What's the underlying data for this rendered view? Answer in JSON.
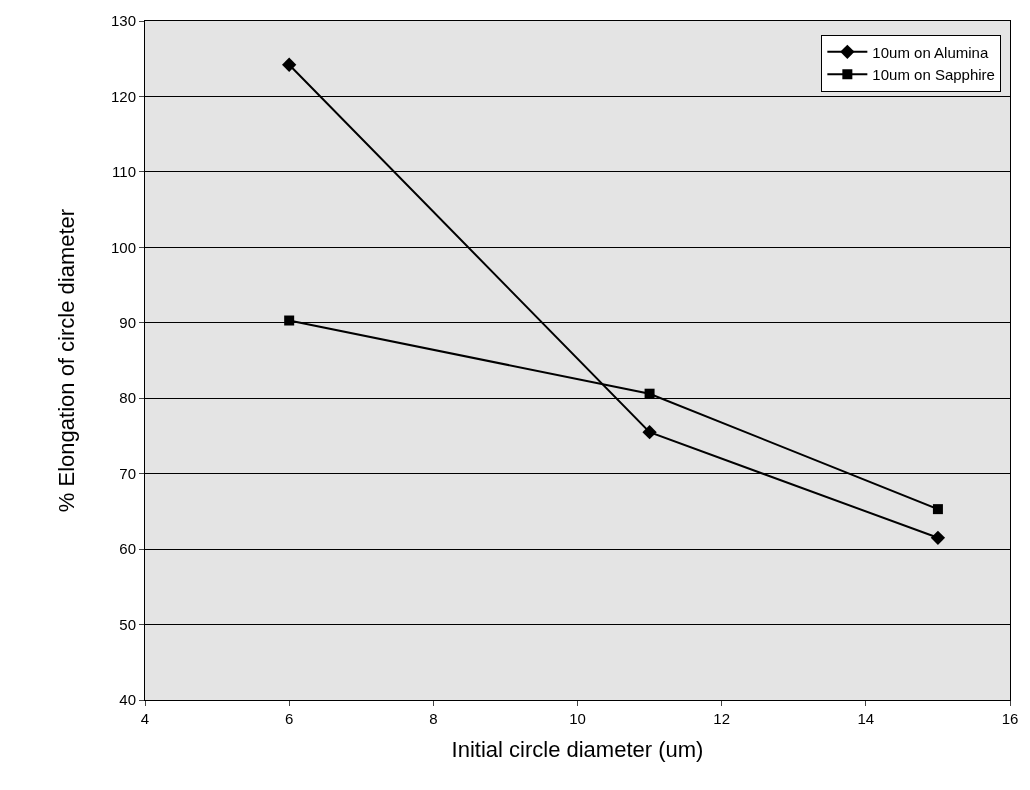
{
  "chart_data": {
    "type": "line",
    "xlabel": "Initial circle diameter (um)",
    "ylabel": "% Elongation of circle diameter",
    "x": [
      6,
      11,
      15
    ],
    "series": [
      {
        "name": "10um on Alumina",
        "color": "#000000",
        "values": [
          124.2,
          75.5,
          61.5
        ],
        "marker": "diamond"
      },
      {
        "name": "10um on Sapphire",
        "color": "#000000",
        "values": [
          90.3,
          80.6,
          65.3
        ],
        "marker": "square"
      }
    ],
    "xlim": [
      4,
      16
    ],
    "xticks": [
      4,
      6,
      8,
      10,
      12,
      14,
      16
    ],
    "ylim": [
      40,
      130
    ],
    "yticks": [
      40,
      50,
      60,
      70,
      80,
      90,
      100,
      110,
      120,
      130
    ],
    "grid": "y",
    "legend": "top right",
    "line_style": "solid"
  }
}
